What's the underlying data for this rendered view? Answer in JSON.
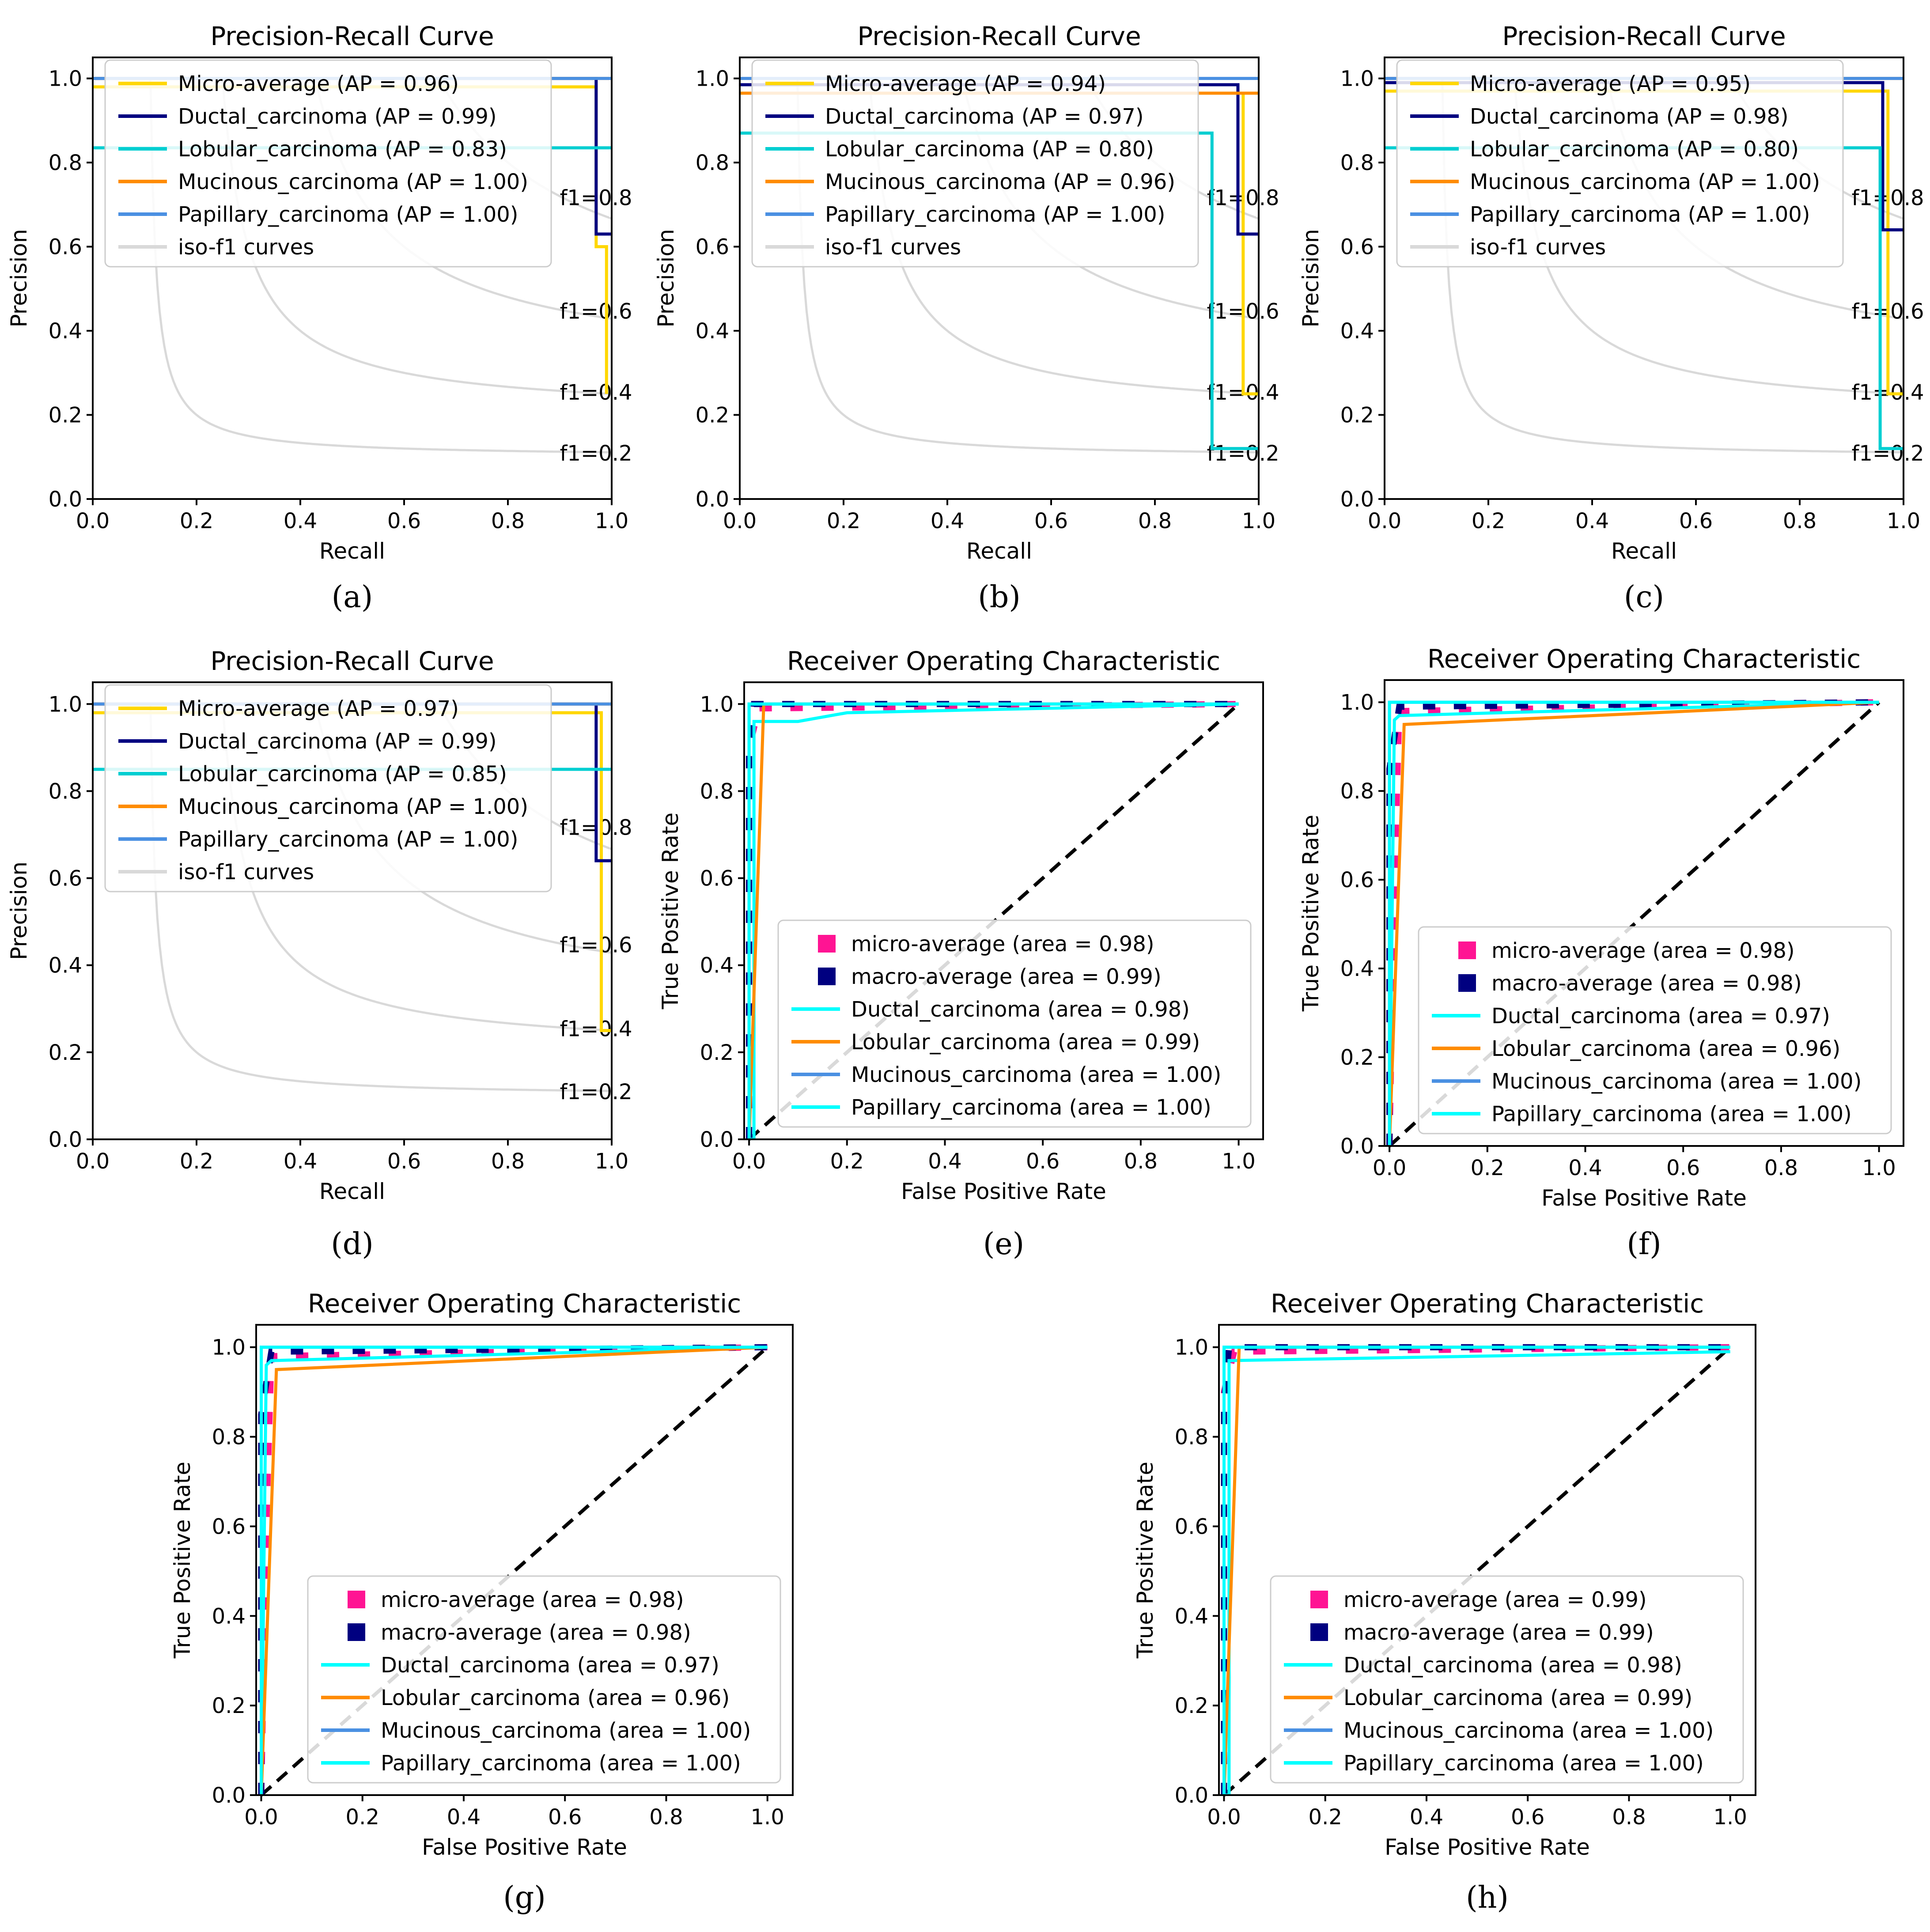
{
  "chart_data": [
    {
      "panel": "(a)",
      "type": "line",
      "title": "Precision-Recall Curve",
      "xlabel": "Recall",
      "ylabel": "Precision",
      "xlim": [
        0,
        1
      ],
      "ylim": [
        0,
        1.05
      ],
      "xticks": [
        "0.0",
        "0.2",
        "0.4",
        "0.6",
        "0.8",
        "1.0"
      ],
      "yticks": [
        "0.0",
        "0.2",
        "0.4",
        "0.6",
        "0.8",
        "1.0"
      ],
      "legend": "top-left",
      "iso_f1": {
        "label": "iso-f1 curves",
        "values": [
          0.2,
          0.4,
          0.6,
          0.8
        ],
        "annotations": [
          "f1=0.2",
          "f1=0.4",
          "f1=0.6",
          "f1=0.8"
        ]
      },
      "series": [
        {
          "name": "Micro-average  (AP = 0.96)",
          "color": "#FFD700",
          "x": [
            0,
            0.97,
            0.97,
            0.99,
            0.99
          ],
          "y": [
            0.98,
            0.98,
            0.6,
            0.6,
            0.25
          ]
        },
        {
          "name": "Ductal_carcinoma (AP = 0.99)",
          "color": "#000080",
          "x": [
            0,
            0.97,
            0.97,
            1.0
          ],
          "y": [
            1.0,
            1.0,
            0.63,
            0.63
          ]
        },
        {
          "name": "Lobular_carcinoma (AP = 0.83)",
          "color": "#00CED1",
          "x": [
            0,
            1.0
          ],
          "y": [
            0.835,
            0.835
          ]
        },
        {
          "name": "Mucinous_carcinoma (AP = 1.00)",
          "color": "#FF8C00",
          "x": [
            0,
            1.0
          ],
          "y": [
            1.0,
            1.0
          ]
        },
        {
          "name": "Papillary_carcinoma (AP = 1.00)",
          "color": "#4A90E2",
          "x": [
            0,
            1.0
          ],
          "y": [
            1.0,
            1.0
          ]
        }
      ]
    },
    {
      "panel": "(b)",
      "type": "line",
      "title": "Precision-Recall Curve",
      "xlabel": "Recall",
      "ylabel": "Precision",
      "xlim": [
        0,
        1
      ],
      "ylim": [
        0,
        1.05
      ],
      "xticks": [
        "0.0",
        "0.2",
        "0.4",
        "0.6",
        "0.8",
        "1.0"
      ],
      "yticks": [
        "0.0",
        "0.2",
        "0.4",
        "0.6",
        "0.8",
        "1.0"
      ],
      "legend": "top-left",
      "iso_f1": {
        "label": "iso-f1 curves",
        "values": [
          0.2,
          0.4,
          0.6,
          0.8
        ],
        "annotations": [
          "f1=0.2",
          "f1=0.4",
          "f1=0.6",
          "f1=0.8"
        ]
      },
      "series": [
        {
          "name": "Micro-average  (AP = 0.94)",
          "color": "#FFD700",
          "x": [
            0,
            0.97,
            0.97,
            1.0
          ],
          "y": [
            0.965,
            0.965,
            0.25,
            0.25
          ]
        },
        {
          "name": "Ductal_carcinoma (AP = 0.97)",
          "color": "#000080",
          "x": [
            0,
            0.96,
            0.96,
            1.0
          ],
          "y": [
            0.985,
            0.985,
            0.63,
            0.63
          ]
        },
        {
          "name": "Lobular_carcinoma (AP = 0.80)",
          "color": "#00CED1",
          "x": [
            0,
            0.91,
            0.91,
            1.0
          ],
          "y": [
            0.87,
            0.87,
            0.12,
            0.12
          ]
        },
        {
          "name": "Mucinous_carcinoma (AP = 0.96)",
          "color": "#FF8C00",
          "x": [
            0,
            1.0
          ],
          "y": [
            0.965,
            0.965
          ]
        },
        {
          "name": "Papillary_carcinoma (AP = 1.00)",
          "color": "#4A90E2",
          "x": [
            0,
            1.0
          ],
          "y": [
            1.0,
            1.0
          ]
        }
      ]
    },
    {
      "panel": "(c)",
      "type": "line",
      "title": "Precision-Recall Curve",
      "xlabel": "Recall",
      "ylabel": "Precision",
      "xlim": [
        0,
        1
      ],
      "ylim": [
        0,
        1.05
      ],
      "xticks": [
        "0.0",
        "0.2",
        "0.4",
        "0.6",
        "0.8",
        "1.0"
      ],
      "yticks": [
        "0.0",
        "0.2",
        "0.4",
        "0.6",
        "0.8",
        "1.0"
      ],
      "legend": "top-left",
      "iso_f1": {
        "label": "iso-f1 curves",
        "values": [
          0.2,
          0.4,
          0.6,
          0.8
        ],
        "annotations": [
          "f1=0.2",
          "f1=0.4",
          "f1=0.6",
          "f1=0.8"
        ]
      },
      "series": [
        {
          "name": "Micro-average  (AP = 0.95)",
          "color": "#FFD700",
          "x": [
            0,
            0.97,
            0.97,
            1.0
          ],
          "y": [
            0.97,
            0.97,
            0.25,
            0.25
          ]
        },
        {
          "name": "Ductal_carcinoma (AP = 0.98)",
          "color": "#000080",
          "x": [
            0,
            0.96,
            0.96,
            1.0
          ],
          "y": [
            0.99,
            0.99,
            0.64,
            0.64
          ]
        },
        {
          "name": "Lobular_carcinoma (AP = 0.80)",
          "color": "#00CED1",
          "x": [
            0,
            0.955,
            0.955,
            1.0
          ],
          "y": [
            0.835,
            0.835,
            0.12,
            0.12
          ]
        },
        {
          "name": "Mucinous_carcinoma (AP = 1.00)",
          "color": "#FF8C00",
          "x": [
            0,
            1.0
          ],
          "y": [
            1.0,
            1.0
          ]
        },
        {
          "name": "Papillary_carcinoma (AP = 1.00)",
          "color": "#4A90E2",
          "x": [
            0,
            1.0
          ],
          "y": [
            1.0,
            1.0
          ]
        }
      ]
    },
    {
      "panel": "(d)",
      "type": "line",
      "title": "Precision-Recall Curve",
      "xlabel": "Recall",
      "ylabel": "Precision",
      "xlim": [
        0,
        1
      ],
      "ylim": [
        0,
        1.05
      ],
      "xticks": [
        "0.0",
        "0.2",
        "0.4",
        "0.6",
        "0.8",
        "1.0"
      ],
      "yticks": [
        "0.0",
        "0.2",
        "0.4",
        "0.6",
        "0.8",
        "1.0"
      ],
      "legend": "top-left",
      "iso_f1": {
        "label": "iso-f1 curves",
        "values": [
          0.2,
          0.4,
          0.6,
          0.8
        ],
        "annotations": [
          "f1=0.2",
          "f1=0.4",
          "f1=0.6",
          "f1=0.8"
        ]
      },
      "series": [
        {
          "name": "Micro-average  (AP = 0.97)",
          "color": "#FFD700",
          "x": [
            0,
            0.98,
            0.98,
            1.0
          ],
          "y": [
            0.98,
            0.98,
            0.25,
            0.25
          ]
        },
        {
          "name": "Ductal_carcinoma (AP = 0.99)",
          "color": "#000080",
          "x": [
            0,
            0.97,
            0.97,
            1.0
          ],
          "y": [
            1.0,
            1.0,
            0.64,
            0.64
          ]
        },
        {
          "name": "Lobular_carcinoma (AP = 0.85)",
          "color": "#00CED1",
          "x": [
            0,
            1.0
          ],
          "y": [
            0.85,
            0.85
          ]
        },
        {
          "name": "Mucinous_carcinoma (AP = 1.00)",
          "color": "#FF8C00",
          "x": [
            0,
            1.0
          ],
          "y": [
            1.0,
            1.0
          ]
        },
        {
          "name": "Papillary_carcinoma (AP = 1.00)",
          "color": "#4A90E2",
          "x": [
            0,
            1.0
          ],
          "y": [
            1.0,
            1.0
          ]
        }
      ]
    },
    {
      "panel": "(e)",
      "type": "line",
      "title": "Receiver Operating Characteristic",
      "xlabel": "False Positive Rate",
      "ylabel": "True Positive Rate",
      "xlim": [
        -0.01,
        1.05
      ],
      "ylim": [
        0,
        1.05
      ],
      "xticks": [
        "0.0",
        "0.2",
        "0.4",
        "0.6",
        "0.8",
        "1.0"
      ],
      "yticks": [
        "0.0",
        "0.2",
        "0.4",
        "0.6",
        "0.8",
        "1.0"
      ],
      "legend": "bottom-right",
      "series": [
        {
          "name": "micro-average (area = 0.98)",
          "color": "#FF1493",
          "style": "dashed",
          "x": [
            0,
            0.0,
            0.02,
            1.0
          ],
          "y": [
            0,
            0.9,
            0.99,
            1.0
          ]
        },
        {
          "name": "macro-average (area = 0.99)",
          "color": "#000080",
          "style": "dashed",
          "x": [
            0,
            0.0,
            0.01,
            1.0
          ],
          "y": [
            0,
            0.88,
            1.0,
            1.0
          ]
        },
        {
          "name": "Ductal_carcinoma (area = 0.98)",
          "color": "#00FFFF",
          "x": [
            0,
            0.01,
            0.01,
            0.1,
            0.2,
            1.0
          ],
          "y": [
            0,
            0.0,
            0.96,
            0.96,
            0.98,
            1.0
          ]
        },
        {
          "name": "Lobular_carcinoma (area = 0.99)",
          "color": "#FF8C00",
          "x": [
            0,
            0.03,
            1.0
          ],
          "y": [
            0,
            1.0,
            1.0
          ]
        },
        {
          "name": "Mucinous_carcinoma (area = 1.00)",
          "color": "#4A90E2",
          "x": [
            0,
            0.0,
            1.0
          ],
          "y": [
            0,
            1.0,
            1.0
          ]
        },
        {
          "name": "Papillary_carcinoma (area = 1.00)",
          "color": "#00FFFF",
          "x": [
            0,
            0.0,
            1.0
          ],
          "y": [
            0,
            1.0,
            1.0
          ]
        }
      ]
    },
    {
      "panel": "(f)",
      "type": "line",
      "title": "Receiver Operating Characteristic",
      "xlabel": "False Positive Rate",
      "ylabel": "True Positive Rate",
      "xlim": [
        -0.01,
        1.05
      ],
      "ylim": [
        0,
        1.05
      ],
      "xticks": [
        "0.0",
        "0.2",
        "0.4",
        "0.6",
        "0.8",
        "1.0"
      ],
      "yticks": [
        "0.0",
        "0.2",
        "0.4",
        "0.6",
        "0.8",
        "1.0"
      ],
      "legend": "bottom-right",
      "series": [
        {
          "name": "micro-average (area = 0.98)",
          "color": "#FF1493",
          "style": "dashed",
          "x": [
            0,
            0.01,
            0.02,
            1.0
          ],
          "y": [
            0,
            0.6,
            0.98,
            1.0
          ]
        },
        {
          "name": "macro-average (area = 0.98)",
          "color": "#000080",
          "style": "dashed",
          "x": [
            0,
            0.0,
            0.02,
            1.0
          ],
          "y": [
            0,
            0.85,
            0.99,
            1.0
          ]
        },
        {
          "name": "Ductal_carcinoma (area = 0.97)",
          "color": "#00FFFF",
          "x": [
            0,
            0.01,
            0.02,
            1.0
          ],
          "y": [
            0,
            0.96,
            0.97,
            1.0
          ]
        },
        {
          "name": "Lobular_carcinoma (area = 0.96)",
          "color": "#FF8C00",
          "x": [
            0,
            0.03,
            1.0
          ],
          "y": [
            0,
            0.95,
            1.0
          ]
        },
        {
          "name": "Mucinous_carcinoma (area = 1.00)",
          "color": "#4A90E2",
          "x": [
            0,
            0.0,
            1.0
          ],
          "y": [
            0,
            1.0,
            1.0
          ]
        },
        {
          "name": "Papillary_carcinoma (area = 1.00)",
          "color": "#00FFFF",
          "x": [
            0,
            0.0,
            1.0
          ],
          "y": [
            0,
            1.0,
            1.0
          ]
        }
      ]
    },
    {
      "panel": "(g)",
      "type": "line",
      "title": "Receiver Operating Characteristic",
      "xlabel": "False Positive Rate",
      "ylabel": "True Positive Rate",
      "xlim": [
        -0.01,
        1.05
      ],
      "ylim": [
        0,
        1.05
      ],
      "xticks": [
        "0.0",
        "0.2",
        "0.4",
        "0.6",
        "0.8",
        "1.0"
      ],
      "yticks": [
        "0.0",
        "0.2",
        "0.4",
        "0.6",
        "0.8",
        "1.0"
      ],
      "legend": "bottom-right",
      "series": [
        {
          "name": "micro-average (area = 0.98)",
          "color": "#FF1493",
          "style": "dashed",
          "x": [
            0,
            0.01,
            0.02,
            1.0
          ],
          "y": [
            0,
            0.6,
            0.98,
            1.0
          ]
        },
        {
          "name": "macro-average (area = 0.98)",
          "color": "#000080",
          "style": "dashed",
          "x": [
            0,
            0.0,
            0.02,
            1.0
          ],
          "y": [
            0,
            0.85,
            0.99,
            1.0
          ]
        },
        {
          "name": "Ductal_carcinoma (area = 0.97)",
          "color": "#00FFFF",
          "x": [
            0,
            0.01,
            0.02,
            1.0
          ],
          "y": [
            0,
            0.96,
            0.97,
            1.0
          ]
        },
        {
          "name": "Lobular_carcinoma (area = 0.96)",
          "color": "#FF8C00",
          "x": [
            0,
            0.03,
            1.0
          ],
          "y": [
            0,
            0.95,
            1.0
          ]
        },
        {
          "name": "Mucinous_carcinoma (area = 1.00)",
          "color": "#4A90E2",
          "x": [
            0,
            0.0,
            1.0
          ],
          "y": [
            0,
            1.0,
            1.0
          ]
        },
        {
          "name": "Papillary_carcinoma (area = 1.00)",
          "color": "#00FFFF",
          "x": [
            0,
            0.0,
            1.0
          ],
          "y": [
            0,
            1.0,
            1.0
          ]
        }
      ]
    },
    {
      "panel": "(h)",
      "type": "line",
      "title": "Receiver Operating Characteristic",
      "xlabel": "False Positive Rate",
      "ylabel": "True Positive Rate",
      "xlim": [
        -0.01,
        1.05
      ],
      "ylim": [
        0,
        1.05
      ],
      "xticks": [
        "0.0",
        "0.2",
        "0.4",
        "0.6",
        "0.8",
        "1.0"
      ],
      "yticks": [
        "0.0",
        "0.2",
        "0.4",
        "0.6",
        "0.8",
        "1.0"
      ],
      "legend": "bottom-right",
      "series": [
        {
          "name": "micro-average (area = 0.99)",
          "color": "#FF1493",
          "style": "dashed",
          "x": [
            0,
            0.0,
            0.02,
            1.0
          ],
          "y": [
            0,
            0.9,
            0.99,
            1.0
          ]
        },
        {
          "name": "macro-average (area = 0.99)",
          "color": "#000080",
          "style": "dashed",
          "x": [
            0,
            0.0,
            0.01,
            1.0
          ],
          "y": [
            0,
            0.88,
            1.0,
            1.0
          ]
        },
        {
          "name": "Ductal_carcinoma (area = 0.98)",
          "color": "#00FFFF",
          "x": [
            0,
            0.01,
            0.01,
            1.0
          ],
          "y": [
            0,
            0.0,
            0.97,
            0.99
          ]
        },
        {
          "name": "Lobular_carcinoma (area = 0.99)",
          "color": "#FF8C00",
          "x": [
            0,
            0.03,
            1.0
          ],
          "y": [
            0,
            1.0,
            1.0
          ]
        },
        {
          "name": "Mucinous_carcinoma (area = 1.00)",
          "color": "#4A90E2",
          "x": [
            0,
            0.0,
            1.0
          ],
          "y": [
            0,
            1.0,
            1.0
          ]
        },
        {
          "name": "Papillary_carcinoma (area = 1.00)",
          "color": "#00FFFF",
          "x": [
            0,
            0.0,
            1.0
          ],
          "y": [
            0,
            1.0,
            1.0
          ]
        }
      ]
    }
  ]
}
